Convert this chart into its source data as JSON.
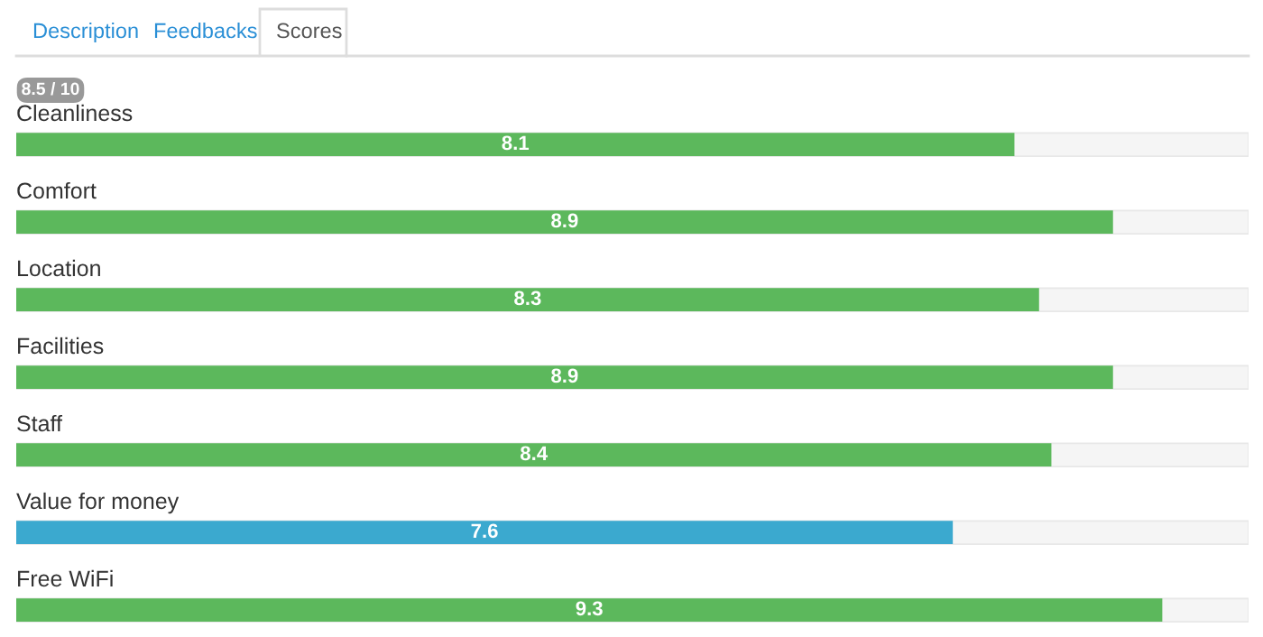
{
  "chart_data": {
    "type": "bar",
    "orientation": "horizontal",
    "categories": [
      "Cleanliness",
      "Comfort",
      "Location",
      "Facilities",
      "Staff",
      "Value for money",
      "Free WiFi"
    ],
    "values": [
      8.1,
      8.9,
      8.3,
      8.9,
      8.4,
      7.6,
      9.3
    ],
    "colors": [
      "#5cb85c",
      "#5cb85c",
      "#5cb85c",
      "#5cb85c",
      "#5cb85c",
      "#3ba9cf",
      "#5cb85c"
    ],
    "xlim": [
      0,
      10
    ],
    "data_labels": true,
    "annotations": [
      "Description",
      "Feedbacks",
      "Scores",
      "8.5 / 10"
    ]
  }
}
